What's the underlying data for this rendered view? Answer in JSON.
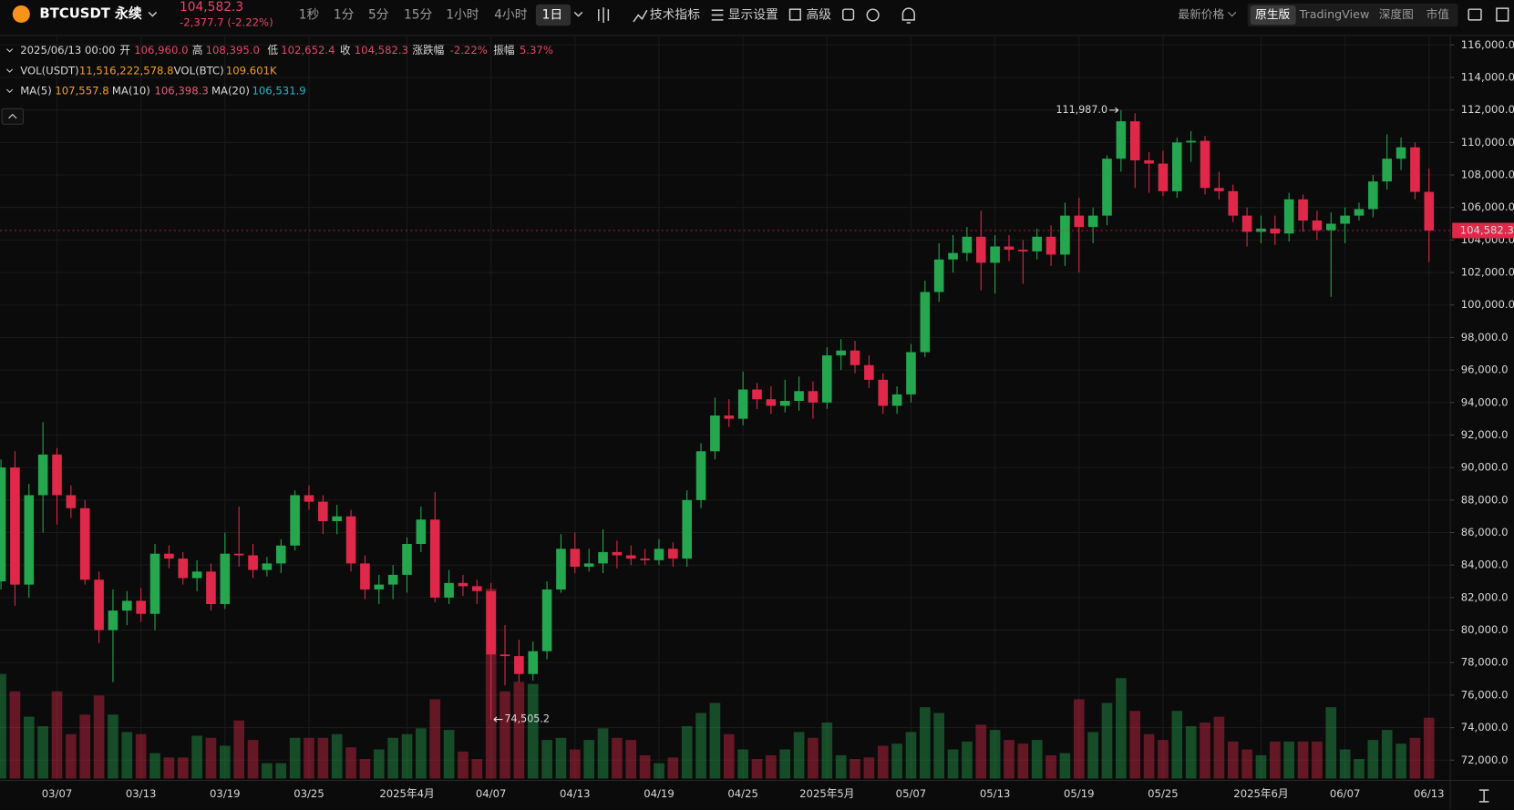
{
  "toolbar": {
    "symbol": "BTCUSDT 永续",
    "price": "104,582.3",
    "change": "-2,377.7 (-2.22%)",
    "intervals": [
      "1秒",
      "1分",
      "5分",
      "15分",
      "1小时",
      "4小时",
      "1日"
    ],
    "menus": [
      "技术指标",
      "显示设置",
      "高级"
    ],
    "price_type": "最新价格",
    "views": [
      "原生版",
      "TradingView",
      "深度图",
      "市值"
    ]
  },
  "info": {
    "datetime": "2025/06/13 00:00",
    "open_label": "开",
    "open": "106,960.0",
    "high_label": "高",
    "high": "108,395.0",
    "low_label": "低",
    "low": "102,652.4",
    "close_label": "收",
    "close": "104,582.3",
    "change_label": "涨跌幅",
    "change": "-2.22%",
    "amplitude_label": "振幅",
    "amplitude": "5.37%",
    "vol_usdt_label": "VOL(USDT)",
    "vol_usdt": "11,516,222,578.8",
    "vol_btc_label": "VOL(BTC)",
    "vol_btc": "109.601K",
    "ma5_label": "MA(5)",
    "ma5": "107,557.8",
    "ma10_label": "MA(10)",
    "ma10": "106,398.3",
    "ma20_label": "MA(20)",
    "ma20": "106,531.9"
  },
  "chart_data": {
    "type": "candlestick",
    "up_color": "#25a750",
    "down_color": "#e0294a",
    "categories": [
      null,
      null,
      null,
      null,
      "03/07",
      null,
      null,
      null,
      null,
      null,
      "03/13",
      null,
      null,
      null,
      null,
      null,
      "03/19",
      null,
      null,
      null,
      null,
      null,
      "03/25",
      null,
      null,
      null,
      null,
      null,
      null,
      "2025年4月",
      null,
      null,
      null,
      null,
      null,
      "04/07",
      null,
      null,
      null,
      null,
      null,
      "04/13",
      null,
      null,
      null,
      null,
      null,
      "04/19",
      null,
      null,
      null,
      null,
      null,
      "04/25",
      null,
      null,
      null,
      null,
      null,
      "2025年5月",
      null,
      null,
      null,
      null,
      null,
      "05/07",
      null,
      null,
      null,
      null,
      null,
      "05/13",
      null,
      null,
      null,
      null,
      null,
      "05/19",
      null,
      null,
      null,
      null,
      null,
      "05/25",
      null,
      null,
      null,
      null,
      null,
      null,
      "2025年6月",
      null,
      null,
      null,
      null,
      null,
      "06/07",
      null,
      null,
      null,
      null,
      null,
      "06/13"
    ],
    "ohlc": [
      [
        83000,
        90500,
        82500,
        90000
      ],
      [
        90000,
        91000,
        81500,
        82800
      ],
      [
        82800,
        89000,
        82000,
        88300
      ],
      [
        88300,
        92800,
        86000,
        90800
      ],
      [
        90800,
        91200,
        86500,
        88300
      ],
      [
        88300,
        88900,
        86900,
        87500
      ],
      [
        87500,
        88000,
        82800,
        83100
      ],
      [
        83100,
        83600,
        79200,
        80000
      ],
      [
        80000,
        82500,
        76800,
        81200
      ],
      [
        81200,
        82400,
        80300,
        81800
      ],
      [
        81800,
        82600,
        80500,
        81000
      ],
      [
        81000,
        85300,
        80000,
        84700
      ],
      [
        84700,
        85200,
        83800,
        84400
      ],
      [
        84400,
        84800,
        82800,
        83200
      ],
      [
        83200,
        84300,
        82400,
        83600
      ],
      [
        83600,
        84100,
        81200,
        81600
      ],
      [
        81600,
        86000,
        81300,
        84700
      ],
      [
        84700,
        87600,
        83900,
        84600
      ],
      [
        84600,
        85300,
        83200,
        83700
      ],
      [
        83700,
        84500,
        83300,
        84100
      ],
      [
        84100,
        85600,
        83500,
        85200
      ],
      [
        85200,
        88600,
        84900,
        88300
      ],
      [
        88300,
        88900,
        87400,
        87900
      ],
      [
        87900,
        88300,
        85900,
        86700
      ],
      [
        86700,
        87700,
        85900,
        87000
      ],
      [
        87000,
        87400,
        83600,
        84100
      ],
      [
        84100,
        84600,
        81900,
        82500
      ],
      [
        82500,
        83400,
        81600,
        82800
      ],
      [
        82800,
        84000,
        81900,
        83400
      ],
      [
        83400,
        85700,
        82300,
        85300
      ],
      [
        85300,
        87600,
        84800,
        86800
      ],
      [
        86800,
        88500,
        81700,
        82000
      ],
      [
        82000,
        83700,
        81600,
        82900
      ],
      [
        82900,
        83400,
        82100,
        82700
      ],
      [
        82700,
        83100,
        81600,
        82400
      ],
      [
        82400,
        82900,
        74505.2,
        78500
      ],
      [
        78500,
        80300,
        76600,
        78400
      ],
      [
        78400,
        79400,
        76800,
        77300
      ],
      [
        77300,
        79300,
        76900,
        78700
      ],
      [
        78700,
        83000,
        78200,
        82500
      ],
      [
        82500,
        85900,
        82300,
        85000
      ],
      [
        85000,
        86000,
        83500,
        83900
      ],
      [
        83900,
        85000,
        83600,
        84100
      ],
      [
        84100,
        86200,
        83500,
        84800
      ],
      [
        84800,
        85500,
        83800,
        84600
      ],
      [
        84600,
        85200,
        84000,
        84400
      ],
      [
        84400,
        85000,
        84000,
        84300
      ],
      [
        84300,
        85600,
        84000,
        85000
      ],
      [
        85000,
        85400,
        83900,
        84400
      ],
      [
        84400,
        88600,
        83900,
        88000
      ],
      [
        88000,
        91500,
        87500,
        91000
      ],
      [
        91000,
        94300,
        90500,
        93200
      ],
      [
        93200,
        94200,
        92500,
        93000
      ],
      [
        93000,
        95900,
        92600,
        94800
      ],
      [
        94800,
        95200,
        93600,
        94200
      ],
      [
        94200,
        95000,
        93300,
        93800
      ],
      [
        93800,
        95400,
        93400,
        94100
      ],
      [
        94100,
        95600,
        93500,
        94700
      ],
      [
        94700,
        95300,
        93000,
        94000
      ],
      [
        94000,
        97400,
        93600,
        96900
      ],
      [
        96900,
        97900,
        96000,
        97200
      ],
      [
        97200,
        97800,
        95800,
        96300
      ],
      [
        96300,
        96900,
        94900,
        95400
      ],
      [
        95400,
        95800,
        93300,
        93800
      ],
      [
        93800,
        95000,
        93300,
        94500
      ],
      [
        94500,
        97600,
        94000,
        97100
      ],
      [
        97100,
        101500,
        96800,
        100800
      ],
      [
        100800,
        103800,
        100200,
        102800
      ],
      [
        102800,
        104300,
        102000,
        103200
      ],
      [
        103200,
        104800,
        102700,
        104200
      ],
      [
        104200,
        105800,
        100900,
        102600
      ],
      [
        102600,
        104300,
        100700,
        103600
      ],
      [
        103600,
        104300,
        102700,
        103400
      ],
      [
        103400,
        104000,
        101300,
        103300
      ],
      [
        103300,
        104700,
        102800,
        104200
      ],
      [
        104200,
        104900,
        102400,
        103100
      ],
      [
        103100,
        106300,
        102400,
        105500
      ],
      [
        105500,
        106600,
        102000,
        104800
      ],
      [
        104800,
        106000,
        103800,
        105500
      ],
      [
        105500,
        109200,
        104900,
        109000
      ],
      [
        109000,
        111987.0,
        108200,
        111300
      ],
      [
        111300,
        111800,
        107200,
        108900
      ],
      [
        108900,
        109400,
        106900,
        108700
      ],
      [
        108700,
        109500,
        106700,
        107000
      ],
      [
        107000,
        110300,
        106600,
        110000
      ],
      [
        110000,
        110700,
        108800,
        110100
      ],
      [
        110100,
        110400,
        106800,
        107200
      ],
      [
        107200,
        108200,
        106500,
        107000
      ],
      [
        107000,
        107400,
        105100,
        105500
      ],
      [
        105500,
        106000,
        103600,
        104500
      ],
      [
        104500,
        105500,
        103800,
        104700
      ],
      [
        104700,
        105500,
        103700,
        104400
      ],
      [
        104400,
        106900,
        103900,
        106500
      ],
      [
        106500,
        106800,
        104500,
        105200
      ],
      [
        105200,
        105800,
        104000,
        104600
      ],
      [
        104600,
        105700,
        100500,
        105000
      ],
      [
        105000,
        106000,
        103800,
        105500
      ],
      [
        105500,
        106300,
        105200,
        105900
      ],
      [
        105900,
        108000,
        105400,
        107600
      ],
      [
        107600,
        110500,
        107100,
        109000
      ],
      [
        109000,
        110300,
        108300,
        109700
      ],
      [
        109700,
        110000,
        106500,
        106960
      ],
      [
        106960,
        108395.0,
        102652.4,
        104582.3
      ]
    ],
    "volumes": [
      19800000000.0,
      16500000000.0,
      11700000000.0,
      9900000000.0,
      16500000000.0,
      8400000000.0,
      12100000000.0,
      15700000000.0,
      12100000000.0,
      8800000000.0,
      8400000000.0,
      4800000000.0,
      4000000000.0,
      4000000000.0,
      8100000000.0,
      7700000000.0,
      6200000000.0,
      11000000000.0,
      7300000000.0,
      2900000000.0,
      2900000000.0,
      7700000000.0,
      7700000000.0,
      7700000000.0,
      8400000000.0,
      5900000000.0,
      3700000000.0,
      5500000000.0,
      7700000000.0,
      8400000000.0,
      9500000000.0,
      15000000000.0,
      9200000000.0,
      5100000000.0,
      3700000000.0,
      35900000000.0,
      16500000000.0,
      18300000000.0,
      17900000000.0,
      7300000000.0,
      7700000000.0,
      5500000000.0,
      7300000000.0,
      9500000000.0,
      7700000000.0,
      7300000000.0,
      4400000000.0,
      2900000000.0,
      4000000000.0,
      9900000000.0,
      12400000000.0,
      14300000000.0,
      8400000000.0,
      5500000000.0,
      3700000000.0,
      4400000000.0,
      5500000000.0,
      8800000000.0,
      7700000000.0,
      10600000000.0,
      4400000000.0,
      3700000000.0,
      4000000000.0,
      6200000000.0,
      6600000000.0,
      8800000000.0,
      13500000000.0,
      12400000000.0,
      5500000000.0,
      7000000000.0,
      10200000000.0,
      9200000000.0,
      7300000000.0,
      6600000000.0,
      7300000000.0,
      4400000000.0,
      4800000000.0,
      15000000000.0,
      8800000000.0,
      14300000000.0,
      19000000000.0,
      12800000000.0,
      8400000000.0,
      7300000000.0,
      12800000000.0,
      9900000000.0,
      10600000000.0,
      11700000000.0,
      7000000000.0,
      5500000000.0,
      4400000000.0,
      7000000000.0,
      7000000000.0,
      7000000000.0,
      7000000000.0,
      13500000000.0,
      5500000000.0,
      3700000000.0,
      7300000000.0,
      9200000000.0,
      6600000000.0,
      7700000000.0,
      11516222578.8
    ],
    "vlim": [
      0,
      40000000000.0
    ],
    "ylim": [
      70750,
      116530
    ],
    "yticks": [
      {
        "value": 72000,
        "label": "72,000.0"
      },
      {
        "value": 74000,
        "label": "74,000.0"
      },
      {
        "value": 76000,
        "label": "76,000.0"
      },
      {
        "value": 78000,
        "label": "78,000.0"
      },
      {
        "value": 80000,
        "label": "80,000.0"
      },
      {
        "value": 82000,
        "label": "82,000.0"
      },
      {
        "value": 84000,
        "label": "84,000.0"
      },
      {
        "value": 86000,
        "label": "86,000.0"
      },
      {
        "value": 88000,
        "label": "88,000.0"
      },
      {
        "value": 90000,
        "label": "90,000.0"
      },
      {
        "value": 92000,
        "label": "92,000.0"
      },
      {
        "value": 94000,
        "label": "94,000.0"
      },
      {
        "value": 96000,
        "label": "96,000.0"
      },
      {
        "value": 98000,
        "label": "98,000.0"
      },
      {
        "value": 100000,
        "label": "100,000.0"
      },
      {
        "value": 102000,
        "label": "102,000.0"
      },
      {
        "value": 104000,
        "label": "104,000.0"
      },
      {
        "value": 106000,
        "label": "106,000.0"
      },
      {
        "value": 108000,
        "label": "108,000.0"
      },
      {
        "value": 110000,
        "label": "110,000.0"
      },
      {
        "value": 112000,
        "label": "112,000.0"
      },
      {
        "value": 114000,
        "label": "114,000.0"
      },
      {
        "value": 116000,
        "label": "116,000.0"
      }
    ],
    "last_price": {
      "value": 104582.3,
      "label": "104,582.3"
    },
    "annotations": [
      {
        "value": 111987.0,
        "label": "111,987.0"
      },
      {
        "value": 74505.2,
        "label": "74,505.2"
      }
    ],
    "grid": true
  }
}
